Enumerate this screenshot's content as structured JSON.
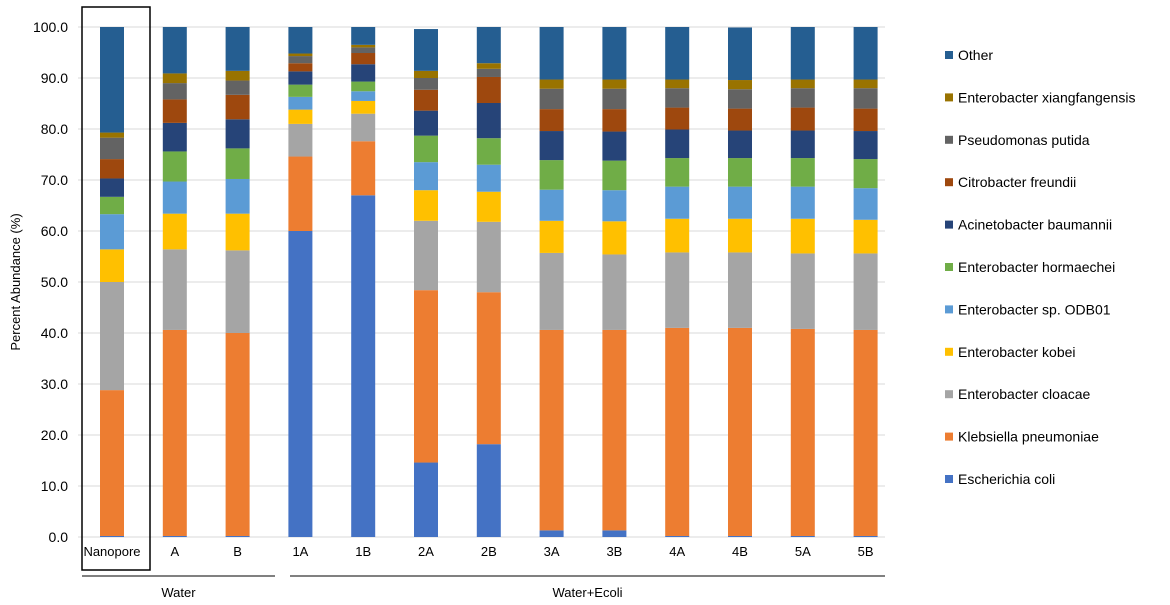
{
  "chart_data": {
    "type": "stacked-bar",
    "ylabel": "Percent Abundance (%)",
    "xlabel": "",
    "ylim": [
      0,
      100
    ],
    "ytick_step": 10,
    "ytick_labels": [
      "0.0",
      "10.0",
      "20.0",
      "30.0",
      "40.0",
      "50.0",
      "60.0",
      "70.0",
      "80.0",
      "90.0",
      "100.0"
    ],
    "grid": true,
    "legend_position": "right",
    "categories": [
      "Nanopore",
      "A",
      "B",
      "1A",
      "1B",
      "2A",
      "2B",
      "3A",
      "3B",
      "4A",
      "4B",
      "5A",
      "5B"
    ],
    "groups": [
      {
        "label": "Water",
        "categories": [
          "Nanopore",
          "A",
          "B"
        ]
      },
      {
        "label": "Water+Ecoli",
        "categories": [
          "1A",
          "1B",
          "2A",
          "2B",
          "3A",
          "3B",
          "4A",
          "4B",
          "5A",
          "5B"
        ]
      }
    ],
    "highlighted_category": "Nanopore",
    "series": [
      {
        "name": "Escherichia coli",
        "color": "#4472C4",
        "values": [
          0.2,
          0.2,
          0.2,
          60,
          67,
          14.6,
          18.2,
          1.3,
          1.3,
          0.2,
          0.2,
          0.2,
          0.2
        ]
      },
      {
        "name": "Klebsiella pneumoniae",
        "color": "#ED7D31",
        "values": [
          28.6,
          40.4,
          39.8,
          14.6,
          10.6,
          33.8,
          29.8,
          39.3,
          39.3,
          40.8,
          40.8,
          40.6,
          40.4
        ]
      },
      {
        "name": "Enterobacter cloacae",
        "color": "#A5A5A5",
        "values": [
          21.2,
          15.8,
          16.2,
          6.4,
          5.4,
          13.6,
          13.8,
          15.1,
          14.8,
          14.8,
          14.8,
          14.8,
          15
        ]
      },
      {
        "name": "Enterobacter kobei",
        "color": "#FFC000",
        "values": [
          6.4,
          7,
          7.2,
          2.8,
          2.5,
          6,
          5.9,
          6.3,
          6.5,
          6.6,
          6.6,
          6.8,
          6.6
        ]
      },
      {
        "name": "Enterobacter sp. ODB01",
        "color": "#5B9BD5",
        "values": [
          6.9,
          6.3,
          6.8,
          2.5,
          1.9,
          5.5,
          5.3,
          6.1,
          6.1,
          6.3,
          6.3,
          6.3,
          6.2
        ]
      },
      {
        "name": "Enterobacter hormaechei",
        "color": "#70AD47",
        "values": [
          3.4,
          5.9,
          6,
          2.4,
          1.9,
          5.2,
          5.2,
          5.8,
          5.8,
          5.6,
          5.6,
          5.6,
          5.7
        ]
      },
      {
        "name": "Acinetobacter baumannii",
        "color": "#264478",
        "values": [
          3.6,
          5.6,
          5.7,
          2.6,
          3.4,
          4.9,
          6.9,
          5.7,
          5.7,
          5.6,
          5.4,
          5.4,
          5.5
        ]
      },
      {
        "name": "Citrobacter freundii",
        "color": "#9E480E",
        "values": [
          3.8,
          4.6,
          4.8,
          1.6,
          2.2,
          4.1,
          5.1,
          4.3,
          4.4,
          4.3,
          4.3,
          4.5,
          4.4
        ]
      },
      {
        "name": "Pseudomonas putida",
        "color": "#636363",
        "values": [
          4.2,
          3.2,
          2.8,
          1.4,
          1.1,
          2.3,
          1.6,
          4,
          4,
          3.8,
          3.8,
          3.8,
          4
        ]
      },
      {
        "name": "Enterobacter xiangfangensis",
        "color": "#997300",
        "values": [
          1,
          1.9,
          1.9,
          0.5,
          0.5,
          1.4,
          1.1,
          1.8,
          1.8,
          1.7,
          1.8,
          1.7,
          1.7
        ]
      },
      {
        "name": "Other",
        "color": "#255E91",
        "values": [
          20.7,
          9.1,
          8.6,
          5.2,
          3.5,
          8.2,
          7.1,
          10.3,
          10.3,
          10.3,
          10.3,
          10.3,
          10.3
        ]
      }
    ]
  }
}
